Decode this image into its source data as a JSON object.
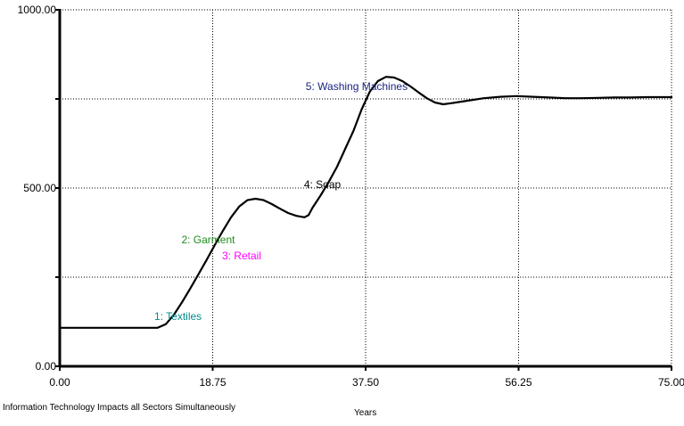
{
  "chart_data": {
    "type": "line",
    "title": "",
    "caption": "Information Technology Impacts all Sectors Simultaneously",
    "xlabel": "Years",
    "ylabel": "",
    "xlim": [
      0,
      75
    ],
    "ylim": [
      0,
      1000
    ],
    "x_ticks": [
      0,
      18.75,
      37.5,
      56.25,
      75
    ],
    "x_tick_labels": [
      "0.00",
      "18.75",
      "37.50",
      "56.25",
      "75.00"
    ],
    "y_ticks": [
      0,
      250,
      500,
      750,
      1000
    ],
    "y_tick_labels": [
      "0.00",
      "",
      "500.00",
      "",
      "1000.00"
    ],
    "grid": true,
    "grid_style": "dotted",
    "series": [
      {
        "name": "",
        "color": "#000000",
        "x": [
          0,
          6,
          10,
          12,
          13,
          14,
          15,
          16,
          17,
          18,
          19,
          20,
          21,
          22,
          23,
          24,
          25,
          26,
          27,
          28,
          29,
          30,
          30.5,
          31,
          32,
          33,
          34,
          35,
          36,
          37,
          38,
          39,
          40,
          41,
          42,
          43,
          44,
          45,
          46,
          47,
          48,
          50,
          52,
          54,
          56,
          58,
          60,
          62,
          64,
          66,
          68,
          70,
          72,
          75
        ],
        "y": [
          108,
          108,
          108,
          108,
          118,
          145,
          180,
          218,
          258,
          298,
          340,
          380,
          418,
          448,
          466,
          470,
          466,
          455,
          442,
          430,
          422,
          418,
          424,
          445,
          480,
          518,
          560,
          610,
          660,
          720,
          770,
          800,
          812,
          810,
          800,
          785,
          768,
          752,
          740,
          735,
          738,
          745,
          752,
          756,
          758,
          756,
          754,
          752,
          752,
          753,
          754,
          754,
          755,
          755
        ]
      }
    ],
    "annotations": [
      {
        "text": "1: Textiles",
        "x": 14.5,
        "y": 130,
        "color": "#008b8b"
      },
      {
        "text": "2: Garment",
        "x": 18.2,
        "y": 345,
        "color": "#228b22"
      },
      {
        "text": "3: Retail",
        "x": 22.3,
        "y": 300,
        "color": "#ff00ff"
      },
      {
        "text": "4: Soap",
        "x": 32.2,
        "y": 500,
        "color": "#000000"
      },
      {
        "text": "5: Washing Machines",
        "x": 36.4,
        "y": 775,
        "color": "#1a237e"
      }
    ]
  }
}
